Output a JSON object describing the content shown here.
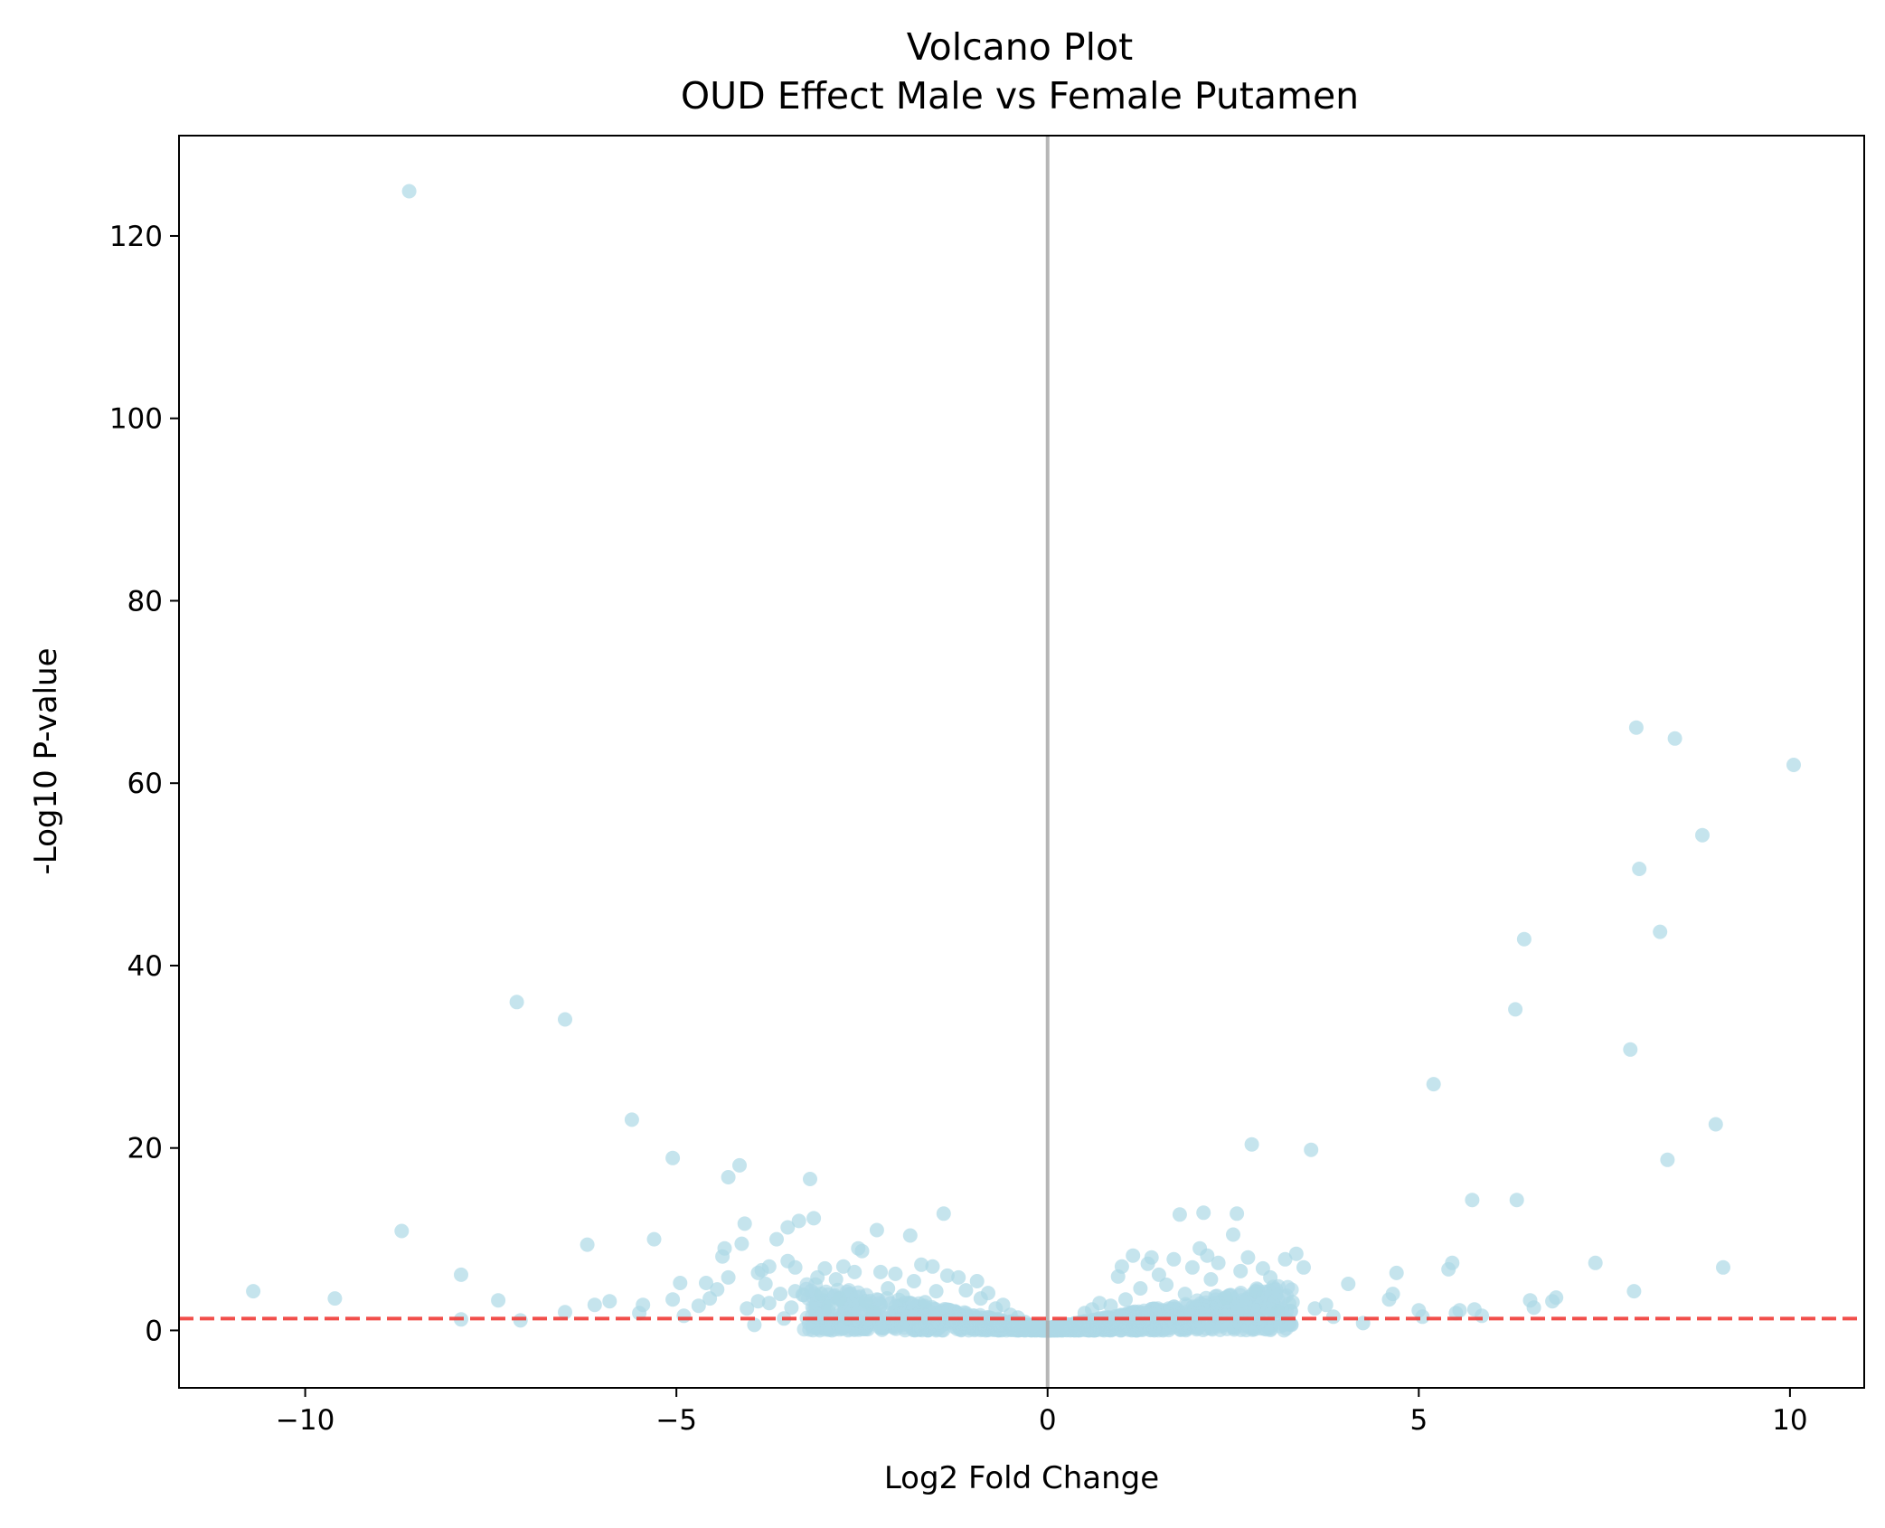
{
  "chart_data": {
    "type": "scatter",
    "title": "Volcano Plot",
    "subtitle": "OUD Effect Male vs Female Putamen",
    "xlabel": "Log2 Fold Change",
    "ylabel": "-Log10 P-value",
    "xlim": [
      -11.7,
      11.0
    ],
    "ylim": [
      -6.3,
      131
    ],
    "x_ticks": [
      -10,
      -5,
      0,
      5,
      10
    ],
    "x_tick_labels": [
      "−10",
      "−5",
      "0",
      "5",
      "10"
    ],
    "y_ticks": [
      0,
      20,
      40,
      60,
      80,
      100,
      120
    ],
    "y_tick_labels": [
      "0",
      "20",
      "40",
      "60",
      "80",
      "100",
      "120"
    ],
    "grid": false,
    "reference_lines": {
      "vertical_x": 0,
      "vertical_color": "#a9a9a9",
      "horizontal_y": 1.3,
      "horizontal_color": "#ef3b36",
      "horizontal_style": "dashed"
    },
    "point_color": "#add8e6",
    "points": [
      [
        -8.6,
        124.9
      ],
      [
        -10.7,
        4.3
      ],
      [
        -9.6,
        3.5
      ],
      [
        -8.7,
        10.9
      ],
      [
        -7.9,
        6.1
      ],
      [
        -7.9,
        1.2
      ],
      [
        -7.4,
        3.3
      ],
      [
        -7.1,
        1.1
      ],
      [
        -7.15,
        36.0
      ],
      [
        -6.5,
        34.1
      ],
      [
        -6.5,
        2.0
      ],
      [
        -6.2,
        9.4
      ],
      [
        -6.1,
        2.8
      ],
      [
        -5.9,
        3.2
      ],
      [
        -5.6,
        23.1
      ],
      [
        -5.5,
        1.9
      ],
      [
        -5.45,
        2.8
      ],
      [
        -5.3,
        10.0
      ],
      [
        -5.05,
        18.9
      ],
      [
        -5.05,
        3.4
      ],
      [
        -4.95,
        5.2
      ],
      [
        -4.9,
        1.6
      ],
      [
        -4.7,
        2.7
      ],
      [
        -4.6,
        5.2
      ],
      [
        -4.55,
        3.5
      ],
      [
        -4.45,
        4.5
      ],
      [
        -4.38,
        8.1
      ],
      [
        -4.35,
        9.0
      ],
      [
        -4.3,
        16.8
      ],
      [
        -4.3,
        5.8
      ],
      [
        -4.15,
        18.1
      ],
      [
        -4.12,
        9.5
      ],
      [
        -4.08,
        11.7
      ],
      [
        -4.05,
        2.4
      ],
      [
        -3.95,
        0.6
      ],
      [
        -3.9,
        3.2
      ],
      [
        -3.9,
        6.3
      ],
      [
        -3.85,
        6.6
      ],
      [
        -3.8,
        5.1
      ],
      [
        -3.75,
        7.0
      ],
      [
        -3.75,
        3.0
      ],
      [
        -3.65,
        10.0
      ],
      [
        -3.6,
        4.0
      ],
      [
        -3.55,
        1.3
      ],
      [
        -3.5,
        7.6
      ],
      [
        -3.5,
        11.3
      ],
      [
        -3.45,
        2.5
      ],
      [
        -3.4,
        6.9
      ],
      [
        -3.4,
        4.3
      ],
      [
        -3.35,
        12.0
      ],
      [
        -3.3,
        3.9
      ],
      [
        -3.2,
        16.6
      ],
      [
        -3.15,
        12.3
      ],
      [
        -3.1,
        5.8
      ],
      [
        -3.05,
        4.0
      ],
      [
        -3.0,
        6.8
      ],
      [
        -2.95,
        2.6
      ],
      [
        -2.85,
        5.6
      ],
      [
        -2.8,
        3.5
      ],
      [
        -2.75,
        7.0
      ],
      [
        -2.7,
        1.3
      ],
      [
        -2.6,
        6.4
      ],
      [
        -2.55,
        9.0
      ],
      [
        -2.5,
        8.7
      ],
      [
        -2.45,
        3.2
      ],
      [
        -2.35,
        2.0
      ],
      [
        -2.3,
        11.0
      ],
      [
        -2.25,
        6.4
      ],
      [
        -2.15,
        4.6
      ],
      [
        -2.05,
        6.2
      ],
      [
        -1.95,
        3.8
      ],
      [
        -1.85,
        10.4
      ],
      [
        -1.8,
        5.4
      ],
      [
        -1.7,
        7.2
      ],
      [
        -1.65,
        3.1
      ],
      [
        -1.55,
        7.0
      ],
      [
        -1.5,
        4.3
      ],
      [
        -1.4,
        12.8
      ],
      [
        -1.35,
        6.0
      ],
      [
        -1.2,
        5.8
      ],
      [
        -1.1,
        4.4
      ],
      [
        -0.95,
        5.4
      ],
      [
        -0.9,
        3.5
      ],
      [
        -0.8,
        4.1
      ],
      [
        -0.7,
        2.4
      ],
      [
        -0.6,
        2.8
      ],
      [
        -0.5,
        1.7
      ],
      [
        -0.4,
        1.4
      ],
      [
        -0.3,
        0.9
      ],
      [
        -0.2,
        0.5
      ],
      [
        0.5,
        1.9
      ],
      [
        0.6,
        2.3
      ],
      [
        0.7,
        3.0
      ],
      [
        0.85,
        2.7
      ],
      [
        0.95,
        5.9
      ],
      [
        1.0,
        7.0
      ],
      [
        1.05,
        3.4
      ],
      [
        1.15,
        8.2
      ],
      [
        1.25,
        4.6
      ],
      [
        1.35,
        7.3
      ],
      [
        1.4,
        8.0
      ],
      [
        1.5,
        6.1
      ],
      [
        1.6,
        5.0
      ],
      [
        1.7,
        7.8
      ],
      [
        1.78,
        12.7
      ],
      [
        1.85,
        4.0
      ],
      [
        1.95,
        6.9
      ],
      [
        2.05,
        9.0
      ],
      [
        2.1,
        12.9
      ],
      [
        2.15,
        8.2
      ],
      [
        2.2,
        5.6
      ],
      [
        2.3,
        7.4
      ],
      [
        2.4,
        3.6
      ],
      [
        2.5,
        10.5
      ],
      [
        2.55,
        12.8
      ],
      [
        2.6,
        6.5
      ],
      [
        2.7,
        8.0
      ],
      [
        2.75,
        20.4
      ],
      [
        2.8,
        4.3
      ],
      [
        2.9,
        6.8
      ],
      [
        3.0,
        5.8
      ],
      [
        3.1,
        2.1
      ],
      [
        3.2,
        7.8
      ],
      [
        3.3,
        3.1
      ],
      [
        3.35,
        8.4
      ],
      [
        3.45,
        6.9
      ],
      [
        3.55,
        19.8
      ],
      [
        3.6,
        2.4
      ],
      [
        3.75,
        2.8
      ],
      [
        3.85,
        1.5
      ],
      [
        4.05,
        5.1
      ],
      [
        4.25,
        0.8
      ],
      [
        4.6,
        3.4
      ],
      [
        4.65,
        4.0
      ],
      [
        4.7,
        6.3
      ],
      [
        5.0,
        2.2
      ],
      [
        5.05,
        1.5
      ],
      [
        5.2,
        27.0
      ],
      [
        5.4,
        6.7
      ],
      [
        5.45,
        7.4
      ],
      [
        5.5,
        1.9
      ],
      [
        5.55,
        2.2
      ],
      [
        5.72,
        14.3
      ],
      [
        5.75,
        2.3
      ],
      [
        5.85,
        1.6
      ],
      [
        6.3,
        35.2
      ],
      [
        6.32,
        14.3
      ],
      [
        6.42,
        42.9
      ],
      [
        6.5,
        3.3
      ],
      [
        6.55,
        2.5
      ],
      [
        6.8,
        3.2
      ],
      [
        6.85,
        3.6
      ],
      [
        7.38,
        7.4
      ],
      [
        7.85,
        30.8
      ],
      [
        7.9,
        4.3
      ],
      [
        7.93,
        66.1
      ],
      [
        7.97,
        50.6
      ],
      [
        8.25,
        43.7
      ],
      [
        8.35,
        18.7
      ],
      [
        8.45,
        64.9
      ],
      [
        8.82,
        54.3
      ],
      [
        9.0,
        22.6
      ],
      [
        9.1,
        6.9
      ],
      [
        10.05,
        62.0
      ]
    ],
    "dense_cloud": [
      {
        "x_range": [
          -3.2,
          -0.3
        ],
        "y_range": [
          0.5,
          5.0
        ]
      },
      {
        "x_range": [
          0.3,
          3.6
        ],
        "y_range": [
          0.5,
          6.5
        ]
      },
      {
        "x_range": [
          -1.2,
          1.2
        ],
        "y_range": [
          0.0,
          2.0
        ]
      }
    ]
  }
}
